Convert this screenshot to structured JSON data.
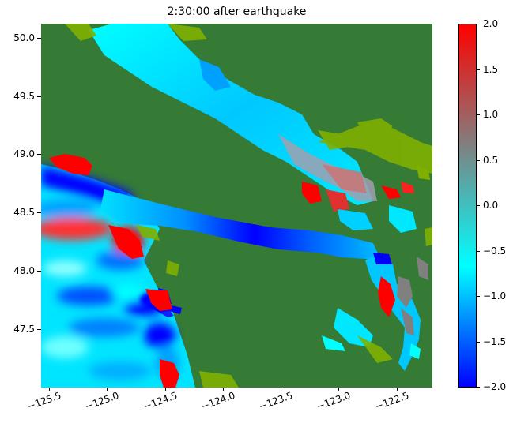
{
  "title": "2:30:00 after earthquake",
  "map": {
    "lon_range": [
      -125.57,
      -122.19
    ],
    "lat_range": [
      47.0,
      50.12
    ],
    "colors": {
      "land": "#357a35",
      "shallow": "#7fb000",
      "deep_blue": "#0000ff",
      "mid_blue": "#0080ff",
      "cyan": "#00ffff",
      "gray": "#808080",
      "red": "#ff0000"
    }
  },
  "x_ticks": [
    {
      "value": -125.5,
      "label": "−125.5"
    },
    {
      "value": -125.0,
      "label": "−125.0"
    },
    {
      "value": -124.5,
      "label": "−124.5"
    },
    {
      "value": -124.0,
      "label": "−124.0"
    },
    {
      "value": -123.5,
      "label": "−123.5"
    },
    {
      "value": -123.0,
      "label": "−123.0"
    },
    {
      "value": -122.5,
      "label": "−122.5"
    }
  ],
  "y_ticks": [
    {
      "value": 47.5,
      "label": "47.5"
    },
    {
      "value": 48.0,
      "label": "48.0"
    },
    {
      "value": 48.5,
      "label": "48.5"
    },
    {
      "value": 49.0,
      "label": "49.0"
    },
    {
      "value": 49.5,
      "label": "49.5"
    },
    {
      "value": 50.0,
      "label": "50.0"
    }
  ],
  "colorbar": {
    "min": -2.0,
    "max": 2.0,
    "stops": [
      "#0000ff",
      "#00ffff",
      "#808080",
      "#ff0000"
    ],
    "ticks": [
      {
        "value": 2.0,
        "label": "2.0"
      },
      {
        "value": 1.5,
        "label": "1.5"
      },
      {
        "value": 1.0,
        "label": "1.0"
      },
      {
        "value": 0.5,
        "label": "0.5"
      },
      {
        "value": 0.0,
        "label": "0.0"
      },
      {
        "value": -0.5,
        "label": "−0.5"
      },
      {
        "value": -1.0,
        "label": "−1.0"
      },
      {
        "value": -1.5,
        "label": "−1.5"
      },
      {
        "value": -2.0,
        "label": "−2.0"
      }
    ]
  }
}
